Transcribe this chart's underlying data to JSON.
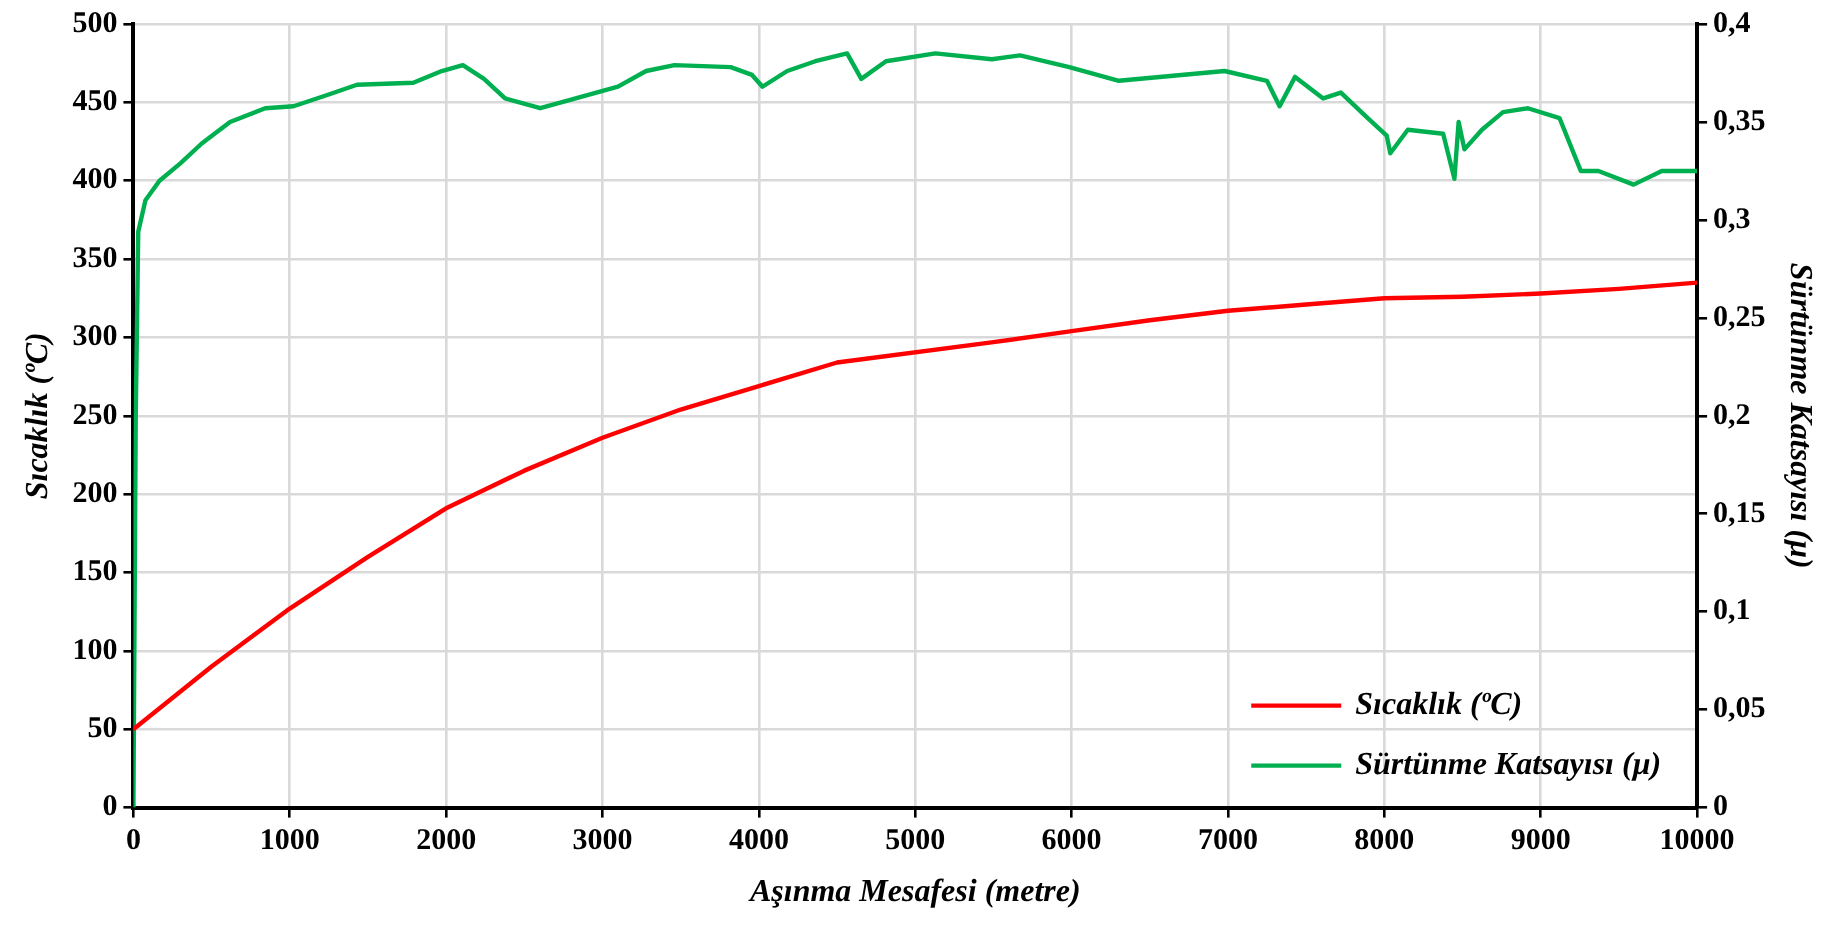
{
  "chart_data": {
    "type": "line",
    "xlabel": "Aşınma Mesafesi (metre)",
    "ylabel": "Sıcaklık (ºC)",
    "y2label": "Sürtünme Katsayısı (μ)",
    "xlim": [
      0,
      10000
    ],
    "xticks": [
      0,
      1000,
      2000,
      3000,
      4000,
      5000,
      6000,
      7000,
      8000,
      9000,
      10000
    ],
    "ylim": [
      0,
      500
    ],
    "yticks": [
      0,
      50,
      100,
      150,
      200,
      250,
      300,
      350,
      400,
      450,
      500
    ],
    "y2lim": [
      0,
      0.4
    ],
    "y2ticks": [
      {
        "value": 0,
        "label": "0"
      },
      {
        "value": 0.05,
        "label": "0,05"
      },
      {
        "value": 0.1,
        "label": "0,1"
      },
      {
        "value": 0.15,
        "label": "0,15"
      },
      {
        "value": 0.2,
        "label": "0,2"
      },
      {
        "value": 0.25,
        "label": "0,25"
      },
      {
        "value": 0.3,
        "label": "0,3"
      },
      {
        "value": 0.35,
        "label": "0,35"
      },
      {
        "value": 0.4,
        "label": "0,4"
      }
    ],
    "grid": true,
    "legend": "bottom right",
    "marker": "none",
    "line_style": "solid",
    "series": [
      {
        "name": "Sıcaklık (ºC)",
        "color": "#ff0000",
        "x": [
          0,
          500,
          1000,
          1500,
          2000,
          2500,
          3000,
          3500,
          4000,
          4500,
          5500,
          6000,
          6500,
          7000,
          7500,
          8000,
          8500,
          9000,
          9500,
          10000
        ],
        "values": [
          50,
          90,
          127,
          160,
          191,
          215,
          236,
          254,
          269,
          284,
          297,
          304,
          311,
          317,
          321,
          325,
          326,
          328,
          331,
          335
        ]
      },
      {
        "name": "Sürtünme Katsayısı (μ)",
        "color": "#00b050",
        "axis": "y2",
        "x": [
          0,
          15,
          31,
          77,
          167,
          302,
          437,
          618,
          843,
          1024,
          1249,
          1430,
          1790,
          1972,
          2107,
          2242,
          2377,
          2602,
          2828,
          3099,
          3279,
          3460,
          3820,
          3956,
          4023,
          4181,
          4361,
          4564,
          4655,
          4813,
          5129,
          5490,
          5670,
          5985,
          6302,
          6978,
          7249,
          7330,
          7429,
          7609,
          7722,
          7880,
          8015,
          8038,
          8150,
          8376,
          8448,
          8475,
          8512,
          8624,
          8759,
          8918,
          9120,
          9256,
          9369,
          9594,
          9774,
          10000
        ],
        "values": [
          0,
          0.2,
          0.294,
          0.31,
          0.32,
          0.329,
          0.339,
          0.35,
          0.357,
          0.358,
          0.364,
          0.369,
          0.37,
          0.376,
          0.379,
          0.372,
          0.362,
          0.357,
          0.362,
          0.368,
          0.376,
          0.379,
          0.378,
          0.374,
          0.368,
          0.376,
          0.381,
          0.385,
          0.372,
          0.381,
          0.385,
          0.382,
          0.384,
          0.378,
          0.371,
          0.376,
          0.371,
          0.358,
          0.373,
          0.362,
          0.365,
          0.353,
          0.343,
          0.334,
          0.346,
          0.344,
          0.321,
          0.35,
          0.336,
          0.346,
          0.355,
          0.357,
          0.352,
          0.325,
          0.325,
          0.318,
          0.325,
          0.325
        ]
      }
    ]
  }
}
